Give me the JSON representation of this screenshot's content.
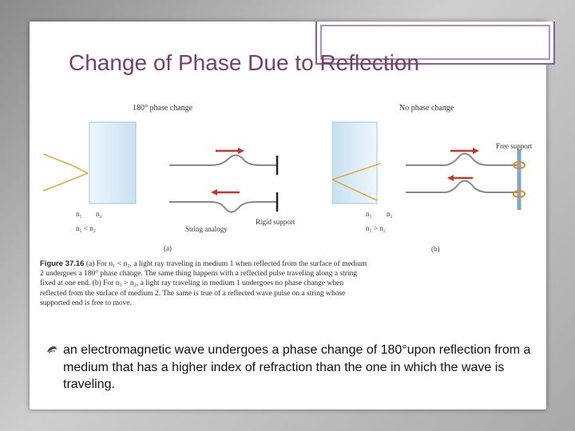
{
  "slide": {
    "title": "Change of Phase Due to Reflection"
  },
  "figure": {
    "panel_a": {
      "heading": "180° phase change",
      "n1": "n₁",
      "n2": "n₂",
      "relation": "n₁  <  n₂",
      "string_label": "String analogy",
      "support_label": "Rigid support",
      "panel_label": "(a)"
    },
    "panel_b": {
      "heading": "No phase change",
      "n1": "n₁",
      "n2": "n₂",
      "relation": "n₁  >  n₂",
      "support_label": "Free support",
      "panel_label": "(b)"
    },
    "caption_label": "Figure 37.16",
    "caption_text": " (a) For n₁ < n₂, a light ray traveling in medium 1 when reflected from the surface of medium 2 undergoes a 180° phase change. The same thing happens with a reflected pulse traveling along a string fixed at one end. (b) For n₁ > n₂, a light ray traveling in medium 1 undergoes no phase change when reflected from the surface of medium 2. The same is true of a reflected wave pulse on a string whose supported end is free to move."
  },
  "bullet": {
    "icon": "fleuron-bullet-icon",
    "text": "an  electromagnetic wave  undergoes  a  phase  change  of  180°upon reflection  from a medium  that has a higher  index of  refraction  than  the one in which the wave is traveling."
  },
  "colors": {
    "title": "#7a3e6a",
    "accent_frame": "#8a5aa8",
    "glass": "#d6e9f5",
    "arrow": "#c0392b",
    "ray": "#e0a020"
  }
}
